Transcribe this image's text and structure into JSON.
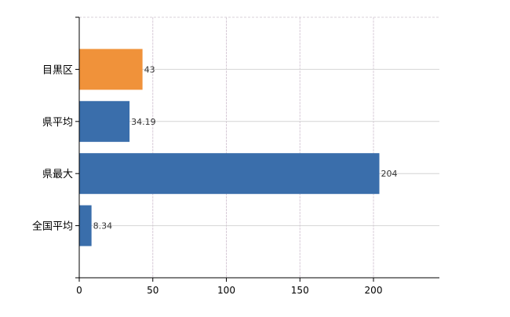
{
  "chart_data": {
    "type": "bar",
    "orientation": "horizontal",
    "categories": [
      "目黒区",
      "県平均",
      "県最大",
      "全国平均"
    ],
    "values": [
      43,
      34.19,
      204,
      8.34
    ],
    "value_labels": [
      "43",
      "34.19",
      "204",
      "8.34"
    ],
    "bar_colors": [
      "#f0923a",
      "#3a6eab",
      "#3a6eab",
      "#3a6eab"
    ],
    "xlim": [
      0,
      244.8
    ],
    "xticks": [
      0,
      50,
      100,
      150,
      200
    ],
    "xtick_labels": [
      "0",
      "50",
      "100",
      "150",
      "200"
    ],
    "grid": true,
    "title": "",
    "xlabel": "",
    "ylabel": ""
  }
}
